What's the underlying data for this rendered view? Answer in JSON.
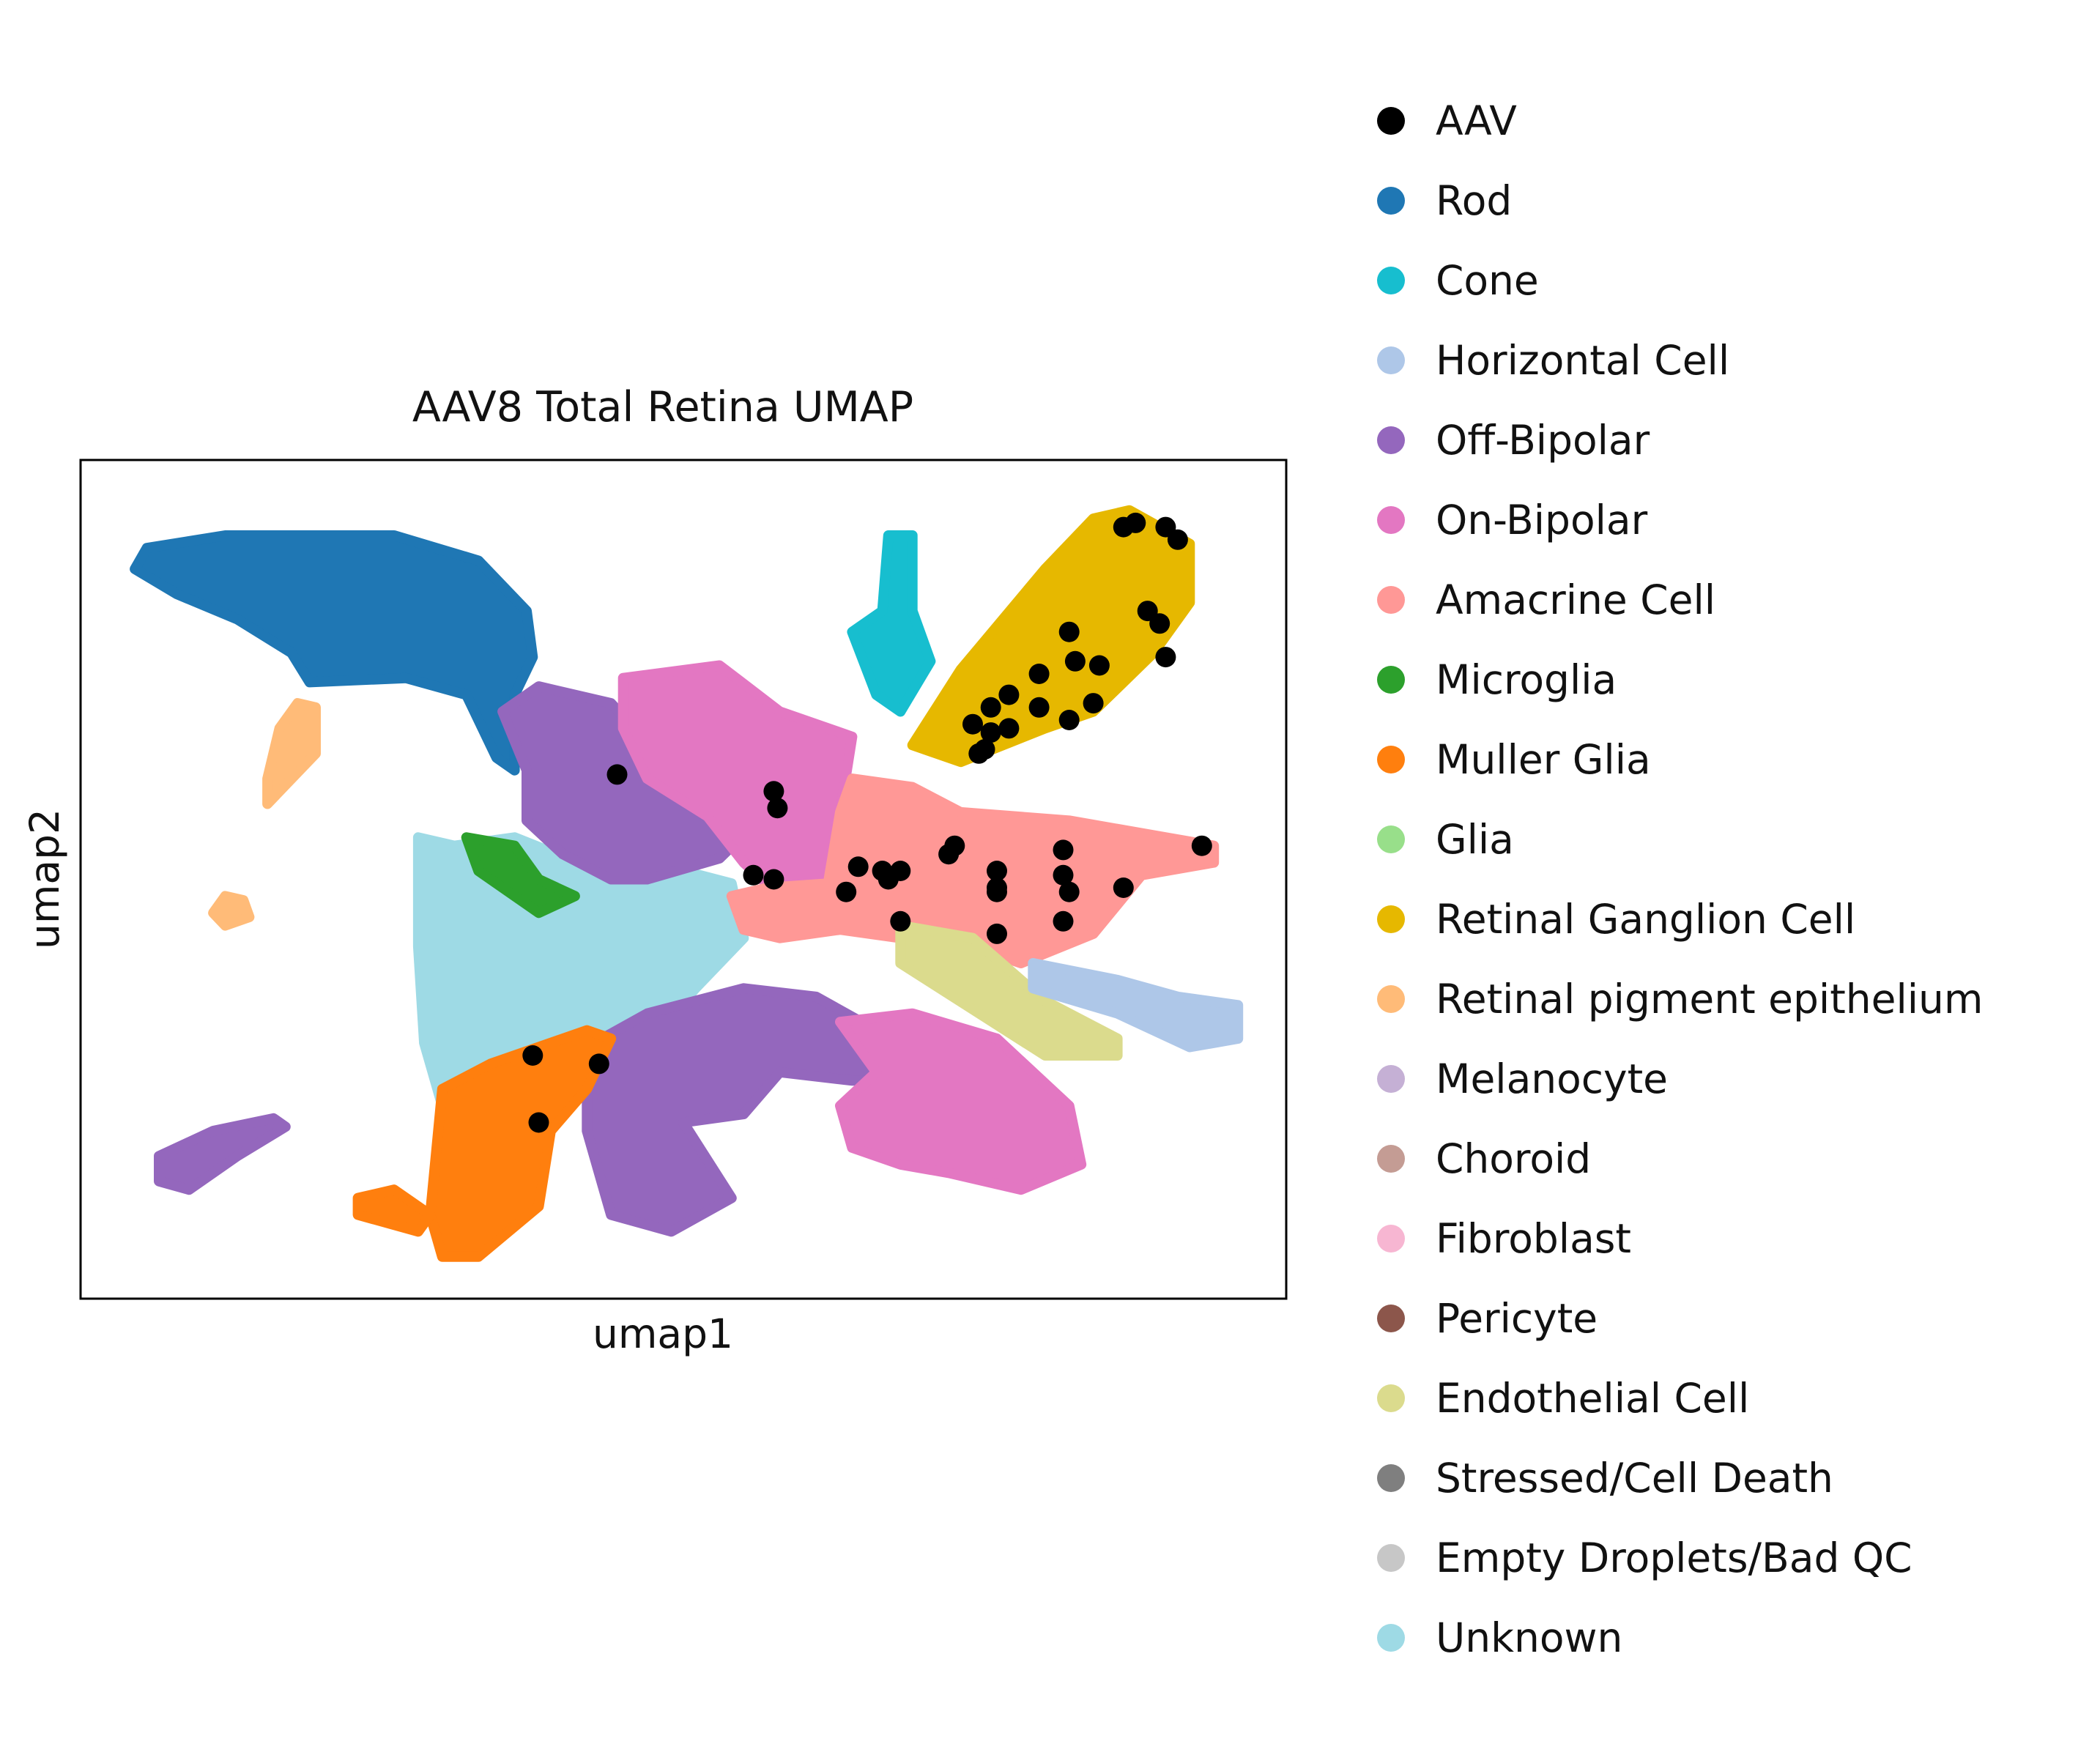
{
  "chart_data": {
    "type": "scatter",
    "title": "AAV8 Total Retina UMAP",
    "xlabel": "umap1",
    "ylabel": "umap2",
    "xlim": [
      0,
      100
    ],
    "ylim": [
      0,
      100
    ],
    "grid": false,
    "ticks_visible": false,
    "legend_placement": "right-outside",
    "categories": [
      {
        "name": "AAV",
        "color": "#000000"
      },
      {
        "name": "Rod",
        "color": "#1f77b4"
      },
      {
        "name": "Cone",
        "color": "#17becf"
      },
      {
        "name": "Horizontal Cell",
        "color": "#aec7e8"
      },
      {
        "name": "Off-Bipolar",
        "color": "#9467bd"
      },
      {
        "name": "On-Bipolar",
        "color": "#e377c2"
      },
      {
        "name": "Amacrine Cell",
        "color": "#ff9896"
      },
      {
        "name": "Microglia",
        "color": "#2ca02c"
      },
      {
        "name": "Muller Glia",
        "color": "#ff7f0e"
      },
      {
        "name": "Glia",
        "color": "#98df8a"
      },
      {
        "name": "Retinal Ganglion Cell",
        "color": "#e6b800"
      },
      {
        "name": "Retinal pigment epithelium",
        "color": "#ffbb78"
      },
      {
        "name": "Melanocyte",
        "color": "#c5b0d5"
      },
      {
        "name": "Choroid",
        "color": "#c49c94"
      },
      {
        "name": "Fibroblast",
        "color": "#f7b6d2"
      },
      {
        "name": "Pericyte",
        "color": "#8c564b"
      },
      {
        "name": "Endothelial Cell",
        "color": "#dbdb8d"
      },
      {
        "name": "Stressed/Cell Death",
        "color": "#7f7f7f"
      },
      {
        "name": "Empty Droplets/Bad QC",
        "color": "#c7c7c7"
      },
      {
        "name": "Unknown",
        "color": "#9edae5"
      }
    ],
    "clusters": [
      {
        "category": "Rod",
        "polygon": [
          [
            4.5,
            87
          ],
          [
            5.5,
            89.5
          ],
          [
            12,
            91
          ],
          [
            26,
            91
          ],
          [
            33,
            88
          ],
          [
            37,
            82
          ],
          [
            37.5,
            76.5
          ],
          [
            36,
            72
          ],
          [
            36,
            63
          ],
          [
            34.5,
            64.5
          ],
          [
            32,
            72
          ],
          [
            27,
            74
          ],
          [
            19,
            73.5
          ],
          [
            17.5,
            77
          ],
          [
            13,
            81
          ],
          [
            8,
            84
          ]
        ]
      },
      {
        "category": "Unknown",
        "polygon": [
          [
            28,
            55
          ],
          [
            31,
            54
          ],
          [
            36,
            55
          ],
          [
            43,
            51
          ],
          [
            50,
            51
          ],
          [
            54,
            49.5
          ],
          [
            55,
            43
          ],
          [
            51,
            37
          ],
          [
            47,
            30.5
          ],
          [
            44,
            30
          ],
          [
            37,
            27.5
          ],
          [
            33,
            26.5
          ],
          [
            30,
            23
          ],
          [
            28.5,
            30.5
          ],
          [
            28,
            42
          ]
        ]
      },
      {
        "category": "Off-Bipolar",
        "polygon": [
          [
            35,
            70
          ],
          [
            38,
            73
          ],
          [
            44,
            71
          ],
          [
            50,
            61.5
          ],
          [
            55.5,
            56
          ],
          [
            53,
            52.5
          ],
          [
            47,
            50
          ],
          [
            44,
            50
          ],
          [
            40,
            53
          ],
          [
            37,
            57
          ],
          [
            37,
            63
          ]
        ]
      },
      {
        "category": "On-Bipolar",
        "polygon": [
          [
            45,
            74
          ],
          [
            53,
            75.5
          ],
          [
            58,
            70
          ],
          [
            64,
            67
          ],
          [
            63,
            58
          ],
          [
            62,
            49.5
          ],
          [
            58,
            48
          ],
          [
            55,
            52
          ],
          [
            52,
            57.5
          ],
          [
            47,
            62
          ],
          [
            45,
            68
          ]
        ]
      },
      {
        "category": "Cone",
        "polygon": [
          [
            67,
            91
          ],
          [
            69,
            91
          ],
          [
            69,
            82
          ],
          [
            70.5,
            76
          ],
          [
            68,
            70
          ],
          [
            66,
            72
          ],
          [
            64,
            79.5
          ],
          [
            66.5,
            82
          ]
        ]
      },
      {
        "category": "Retinal Ganglion Cell",
        "polygon": [
          [
            69,
            66
          ],
          [
            73,
            75
          ],
          [
            80,
            87
          ],
          [
            84,
            93
          ],
          [
            87,
            94
          ],
          [
            92,
            90
          ],
          [
            92,
            83
          ],
          [
            89,
            77
          ],
          [
            84,
            70
          ],
          [
            80,
            68
          ],
          [
            73,
            64
          ]
        ]
      },
      {
        "category": "Amacrine Cell",
        "polygon": [
          [
            54,
            48
          ],
          [
            57,
            49
          ],
          [
            62,
            49.5
          ],
          [
            63,
            58
          ],
          [
            64,
            62
          ],
          [
            69,
            61
          ],
          [
            73,
            58
          ],
          [
            82,
            57
          ],
          [
            90,
            55
          ],
          [
            94,
            54
          ],
          [
            94,
            52
          ],
          [
            88,
            50.5
          ],
          [
            84,
            43.5
          ],
          [
            78,
            40
          ],
          [
            72,
            43
          ],
          [
            68,
            43
          ],
          [
            63,
            44
          ],
          [
            58,
            43
          ],
          [
            55,
            44
          ]
        ]
      },
      {
        "category": "Off-Bipolar",
        "polygon": [
          [
            42,
            30
          ],
          [
            47,
            34
          ],
          [
            55,
            37
          ],
          [
            61,
            36
          ],
          [
            66,
            32
          ],
          [
            70,
            28
          ],
          [
            68,
            26
          ],
          [
            64,
            26
          ],
          [
            58,
            27
          ],
          [
            55,
            22
          ],
          [
            50,
            21
          ],
          [
            54,
            12
          ],
          [
            49,
            8
          ],
          [
            44,
            10
          ],
          [
            42,
            20
          ]
        ]
      },
      {
        "category": "On-Bipolar",
        "polygon": [
          [
            63,
            33
          ],
          [
            69,
            34
          ],
          [
            76,
            31
          ],
          [
            82,
            23
          ],
          [
            83,
            16
          ],
          [
            78,
            13
          ],
          [
            72,
            15
          ],
          [
            68,
            16
          ],
          [
            64,
            18
          ],
          [
            63,
            23
          ],
          [
            66,
            27
          ]
        ]
      },
      {
        "category": "Muller Glia",
        "polygon": [
          [
            30,
            25
          ],
          [
            34,
            28
          ],
          [
            38,
            30
          ],
          [
            42,
            32
          ],
          [
            44,
            31
          ],
          [
            42,
            25
          ],
          [
            39,
            20
          ],
          [
            38,
            11
          ],
          [
            33,
            5
          ],
          [
            30,
            5
          ],
          [
            29,
            10
          ]
        ]
      },
      {
        "category": "Muller Glia",
        "polygon": [
          [
            23,
            12
          ],
          [
            26,
            13
          ],
          [
            29,
            10
          ],
          [
            28,
            8
          ],
          [
            23,
            10
          ]
        ]
      },
      {
        "category": "Endothelial Cell",
        "polygon": [
          [
            68,
            44.5
          ],
          [
            74,
            43
          ],
          [
            80,
            35.5
          ],
          [
            86,
            31
          ],
          [
            86,
            29
          ],
          [
            80,
            29
          ],
          [
            74,
            34.5
          ],
          [
            68,
            40
          ]
        ]
      },
      {
        "category": "Horizontal Cell",
        "polygon": [
          [
            79,
            40
          ],
          [
            86,
            38
          ],
          [
            91,
            36
          ],
          [
            96,
            35
          ],
          [
            96,
            31
          ],
          [
            92,
            30
          ],
          [
            86,
            34
          ],
          [
            79,
            37
          ]
        ]
      },
      {
        "category": "Off-Bipolar",
        "polygon": [
          [
            6.5,
            17
          ],
          [
            11,
            20
          ],
          [
            16,
            21.5
          ],
          [
            17,
            20.5
          ],
          [
            13,
            17
          ],
          [
            9,
            13
          ],
          [
            6.5,
            14
          ]
        ]
      },
      {
        "category": "Microglia",
        "polygon": [
          [
            32,
            55
          ],
          [
            36,
            54
          ],
          [
            38,
            50
          ],
          [
            41,
            48
          ],
          [
            38,
            46
          ],
          [
            36,
            48
          ],
          [
            33,
            51
          ]
        ]
      },
      {
        "category": "Retinal pigment epithelium",
        "polygon": [
          [
            16.5,
            68
          ],
          [
            18,
            71
          ],
          [
            19.5,
            70.5
          ],
          [
            19.5,
            65
          ],
          [
            17.5,
            62
          ],
          [
            15.5,
            59
          ],
          [
            15.5,
            62
          ]
        ]
      },
      {
        "category": "Retinal pigment epithelium",
        "polygon": [
          [
            11,
            46
          ],
          [
            12,
            48
          ],
          [
            13.5,
            47.5
          ],
          [
            14,
            45.5
          ],
          [
            12,
            44.5
          ]
        ]
      }
    ],
    "aav_points": [
      [
        44.5,
        62.5
      ],
      [
        57.5,
        60.5
      ],
      [
        57.8,
        58.5
      ],
      [
        55.8,
        50.5
      ],
      [
        57.5,
        50
      ],
      [
        37.5,
        29
      ],
      [
        43,
        28
      ],
      [
        38,
        21
      ],
      [
        63.5,
        48.5
      ],
      [
        64.5,
        51.5
      ],
      [
        66.5,
        51
      ],
      [
        67,
        50
      ],
      [
        68,
        51
      ],
      [
        68,
        45
      ],
      [
        72,
        53
      ],
      [
        72.5,
        54
      ],
      [
        76,
        51
      ],
      [
        76,
        49
      ],
      [
        76,
        48.5
      ],
      [
        76,
        43.5
      ],
      [
        81.5,
        50.5
      ],
      [
        81.5,
        53.5
      ],
      [
        82,
        48.5
      ],
      [
        81.5,
        45
      ],
      [
        86.5,
        49
      ],
      [
        93,
        54
      ],
      [
        74,
        68.5
      ],
      [
        74.5,
        65
      ],
      [
        75.5,
        67.5
      ],
      [
        75.5,
        70.5
      ],
      [
        75,
        65.5
      ],
      [
        77,
        68
      ],
      [
        77,
        72
      ],
      [
        79.5,
        74.5
      ],
      [
        79.5,
        70.5
      ],
      [
        82,
        79.5
      ],
      [
        82.5,
        76
      ],
      [
        84,
        71
      ],
      [
        82,
        69
      ],
      [
        84.5,
        75.5
      ],
      [
        88.5,
        82
      ],
      [
        89.5,
        80.5
      ],
      [
        90,
        76.5
      ],
      [
        86.5,
        92
      ],
      [
        87.5,
        92.5
      ],
      [
        90,
        92
      ],
      [
        91,
        90.5
      ]
    ]
  }
}
